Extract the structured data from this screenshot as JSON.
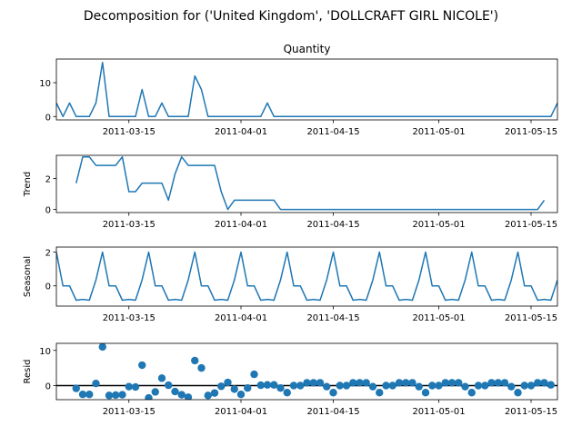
{
  "figure": {
    "suptitle": "Decomposition for ('United Kingdom', 'DOLLCRAFT GIRL NICOLE')"
  },
  "colors": {
    "line": "#1f77b4",
    "marker": "#1f77b4",
    "zero_line": "#000000",
    "axes": "#000000",
    "background": "#ffffff"
  },
  "chart_data": [
    {
      "type": "line",
      "title": "Quantity",
      "ylabel": "",
      "ylim": [
        -1,
        17
      ],
      "yticks": [
        0,
        10
      ],
      "xlim": [
        "2011-03-04",
        "2011-05-19"
      ],
      "xticks": [
        "2011-03-15",
        "2011-04-01",
        "2011-04-15",
        "2011-05-01",
        "2011-05-15"
      ],
      "points": [
        [
          "2011-03-04",
          4
        ],
        [
          "2011-03-05",
          0
        ],
        [
          "2011-03-06",
          4
        ],
        [
          "2011-03-07",
          0
        ],
        [
          "2011-03-08",
          0
        ],
        [
          "2011-03-09",
          0
        ],
        [
          "2011-03-10",
          4
        ],
        [
          "2011-03-11",
          16
        ],
        [
          "2011-03-12",
          0
        ],
        [
          "2011-03-13",
          0
        ],
        [
          "2011-03-14",
          0
        ],
        [
          "2011-03-15",
          0
        ],
        [
          "2011-03-16",
          0
        ],
        [
          "2011-03-17",
          8
        ],
        [
          "2011-03-18",
          0
        ],
        [
          "2011-03-19",
          0
        ],
        [
          "2011-03-20",
          4
        ],
        [
          "2011-03-21",
          0
        ],
        [
          "2011-03-22",
          0
        ],
        [
          "2011-03-23",
          0
        ],
        [
          "2011-03-24",
          0
        ],
        [
          "2011-03-25",
          12
        ],
        [
          "2011-03-26",
          8
        ],
        [
          "2011-03-27",
          0
        ],
        [
          "2011-03-28",
          0
        ],
        [
          "2011-03-29",
          0
        ],
        [
          "2011-03-30",
          0
        ],
        [
          "2011-03-31",
          0
        ],
        [
          "2011-04-01",
          0
        ],
        [
          "2011-04-02",
          0
        ],
        [
          "2011-04-03",
          0
        ],
        [
          "2011-04-04",
          0
        ],
        [
          "2011-04-05",
          4
        ],
        [
          "2011-04-06",
          0
        ],
        [
          "2011-04-07",
          0
        ],
        [
          "2011-05-18",
          0
        ],
        [
          "2011-05-19",
          4
        ]
      ]
    },
    {
      "type": "line",
      "title": "",
      "ylabel": "Trend",
      "ylim": [
        -0.2,
        3.5
      ],
      "yticks": [
        0,
        2
      ],
      "xlim": [
        "2011-03-04",
        "2011-05-19"
      ],
      "xticks": [
        "2011-03-15",
        "2011-04-01",
        "2011-04-15",
        "2011-05-01",
        "2011-05-15"
      ],
      "points": [
        [
          "2011-03-07",
          1.7
        ],
        [
          "2011-03-08",
          3.4
        ],
        [
          "2011-03-09",
          3.4
        ],
        [
          "2011-03-10",
          2.85
        ],
        [
          "2011-03-11",
          2.85
        ],
        [
          "2011-03-12",
          2.85
        ],
        [
          "2011-03-13",
          2.85
        ],
        [
          "2011-03-14",
          3.4
        ],
        [
          "2011-03-15",
          1.15
        ],
        [
          "2011-03-16",
          1.15
        ],
        [
          "2011-03-17",
          1.7
        ],
        [
          "2011-03-18",
          1.7
        ],
        [
          "2011-03-19",
          1.7
        ],
        [
          "2011-03-20",
          1.7
        ],
        [
          "2011-03-21",
          0.6
        ],
        [
          "2011-03-22",
          2.3
        ],
        [
          "2011-03-23",
          3.4
        ],
        [
          "2011-03-24",
          2.85
        ],
        [
          "2011-03-25",
          2.85
        ],
        [
          "2011-03-26",
          2.85
        ],
        [
          "2011-03-27",
          2.85
        ],
        [
          "2011-03-28",
          2.85
        ],
        [
          "2011-03-29",
          1.15
        ],
        [
          "2011-03-30",
          0.0
        ],
        [
          "2011-03-31",
          0.6
        ],
        [
          "2011-04-01",
          0.6
        ],
        [
          "2011-04-02",
          0.6
        ],
        [
          "2011-04-03",
          0.6
        ],
        [
          "2011-04-04",
          0.6
        ],
        [
          "2011-04-05",
          0.6
        ],
        [
          "2011-04-06",
          0.6
        ],
        [
          "2011-04-07",
          0.0
        ],
        [
          "2011-05-16",
          0.0
        ],
        [
          "2011-05-17",
          0.6
        ]
      ]
    },
    {
      "type": "line",
      "title": "",
      "ylabel": "Seasonal",
      "ylim": [
        -1.2,
        2.3
      ],
      "yticks": [
        0,
        2
      ],
      "xlim": [
        "2011-03-04",
        "2011-05-19"
      ],
      "xticks": [
        "2011-03-15",
        "2011-04-01",
        "2011-04-15",
        "2011-05-01",
        "2011-05-15"
      ],
      "seasonal_period_days": 7,
      "seasonal_cycle": [
        2.0,
        0.0,
        0.0,
        -0.85,
        -0.8,
        -0.85,
        0.35
      ]
    },
    {
      "type": "scatter",
      "title": "",
      "ylabel": "Resid",
      "ylim": [
        -4,
        12
      ],
      "yticks": [
        0,
        10
      ],
      "zero_line": 0,
      "xlim": [
        "2011-03-04",
        "2011-05-19"
      ],
      "xticks": [
        "2011-03-15",
        "2011-04-01",
        "2011-04-15",
        "2011-05-01",
        "2011-05-15"
      ],
      "points": [
        [
          "2011-03-07",
          -0.8
        ],
        [
          "2011-03-08",
          -2.5
        ],
        [
          "2011-03-09",
          -2.5
        ],
        [
          "2011-03-10",
          0.6
        ],
        [
          "2011-03-11",
          11.0
        ],
        [
          "2011-03-12",
          -2.8
        ],
        [
          "2011-03-13",
          -2.7
        ],
        [
          "2011-03-14",
          -2.6
        ],
        [
          "2011-03-15",
          -0.3
        ],
        [
          "2011-03-16",
          -0.4
        ],
        [
          "2011-03-17",
          5.8
        ],
        [
          "2011-03-18",
          -3.5
        ],
        [
          "2011-03-19",
          -1.8
        ],
        [
          "2011-03-20",
          2.1
        ],
        [
          "2011-03-21",
          0.1
        ],
        [
          "2011-03-22",
          -1.7
        ],
        [
          "2011-03-23",
          -2.6
        ],
        [
          "2011-03-24",
          -3.3
        ],
        [
          "2011-03-25",
          7.1
        ],
        [
          "2011-03-26",
          5.0
        ],
        [
          "2011-03-27",
          -2.8
        ],
        [
          "2011-03-28",
          -2.1
        ],
        [
          "2011-03-29",
          -0.2
        ],
        [
          "2011-03-30",
          0.9
        ],
        [
          "2011-03-31",
          -1.0
        ],
        [
          "2011-04-01",
          -2.5
        ],
        [
          "2011-04-02",
          -0.7
        ],
        [
          "2011-04-03",
          3.2
        ],
        [
          "2011-04-04",
          0.1
        ],
        [
          "2011-04-05",
          0.2
        ],
        [
          "2011-04-06",
          0.2
        ],
        [
          "2011-04-07",
          -0.7
        ],
        [
          "2011-04-08",
          -2.0
        ],
        [
          "2011-04-09",
          0.0
        ],
        [
          "2011-04-10",
          0.0
        ],
        [
          "2011-04-11",
          0.8
        ],
        [
          "2011-04-12",
          0.8
        ],
        [
          "2011-04-13",
          0.8
        ],
        [
          "2011-04-14",
          -0.3
        ],
        [
          "2011-04-15",
          -2.0
        ],
        [
          "2011-04-16",
          0.0
        ],
        [
          "2011-04-17",
          0.0
        ],
        [
          "2011-04-18",
          0.8
        ],
        [
          "2011-04-19",
          0.8
        ],
        [
          "2011-04-20",
          0.8
        ],
        [
          "2011-04-21",
          -0.3
        ],
        [
          "2011-04-22",
          -2.0
        ],
        [
          "2011-04-23",
          0.0
        ],
        [
          "2011-04-24",
          0.0
        ],
        [
          "2011-04-25",
          0.8
        ],
        [
          "2011-04-26",
          0.8
        ],
        [
          "2011-04-27",
          0.8
        ],
        [
          "2011-04-28",
          -0.3
        ],
        [
          "2011-04-29",
          -2.0
        ],
        [
          "2011-04-30",
          0.0
        ],
        [
          "2011-05-01",
          0.0
        ],
        [
          "2011-05-02",
          0.8
        ],
        [
          "2011-05-03",
          0.8
        ],
        [
          "2011-05-04",
          0.8
        ],
        [
          "2011-05-05",
          -0.3
        ],
        [
          "2011-05-06",
          -2.0
        ],
        [
          "2011-05-07",
          0.0
        ],
        [
          "2011-05-08",
          0.0
        ],
        [
          "2011-05-09",
          0.8
        ],
        [
          "2011-05-10",
          0.8
        ],
        [
          "2011-05-11",
          0.8
        ],
        [
          "2011-05-12",
          -0.3
        ],
        [
          "2011-05-13",
          -2.0
        ],
        [
          "2011-05-14",
          0.0
        ],
        [
          "2011-05-15",
          0.0
        ],
        [
          "2011-05-16",
          0.8
        ],
        [
          "2011-05-17",
          0.8
        ],
        [
          "2011-05-18",
          0.2
        ]
      ]
    }
  ]
}
